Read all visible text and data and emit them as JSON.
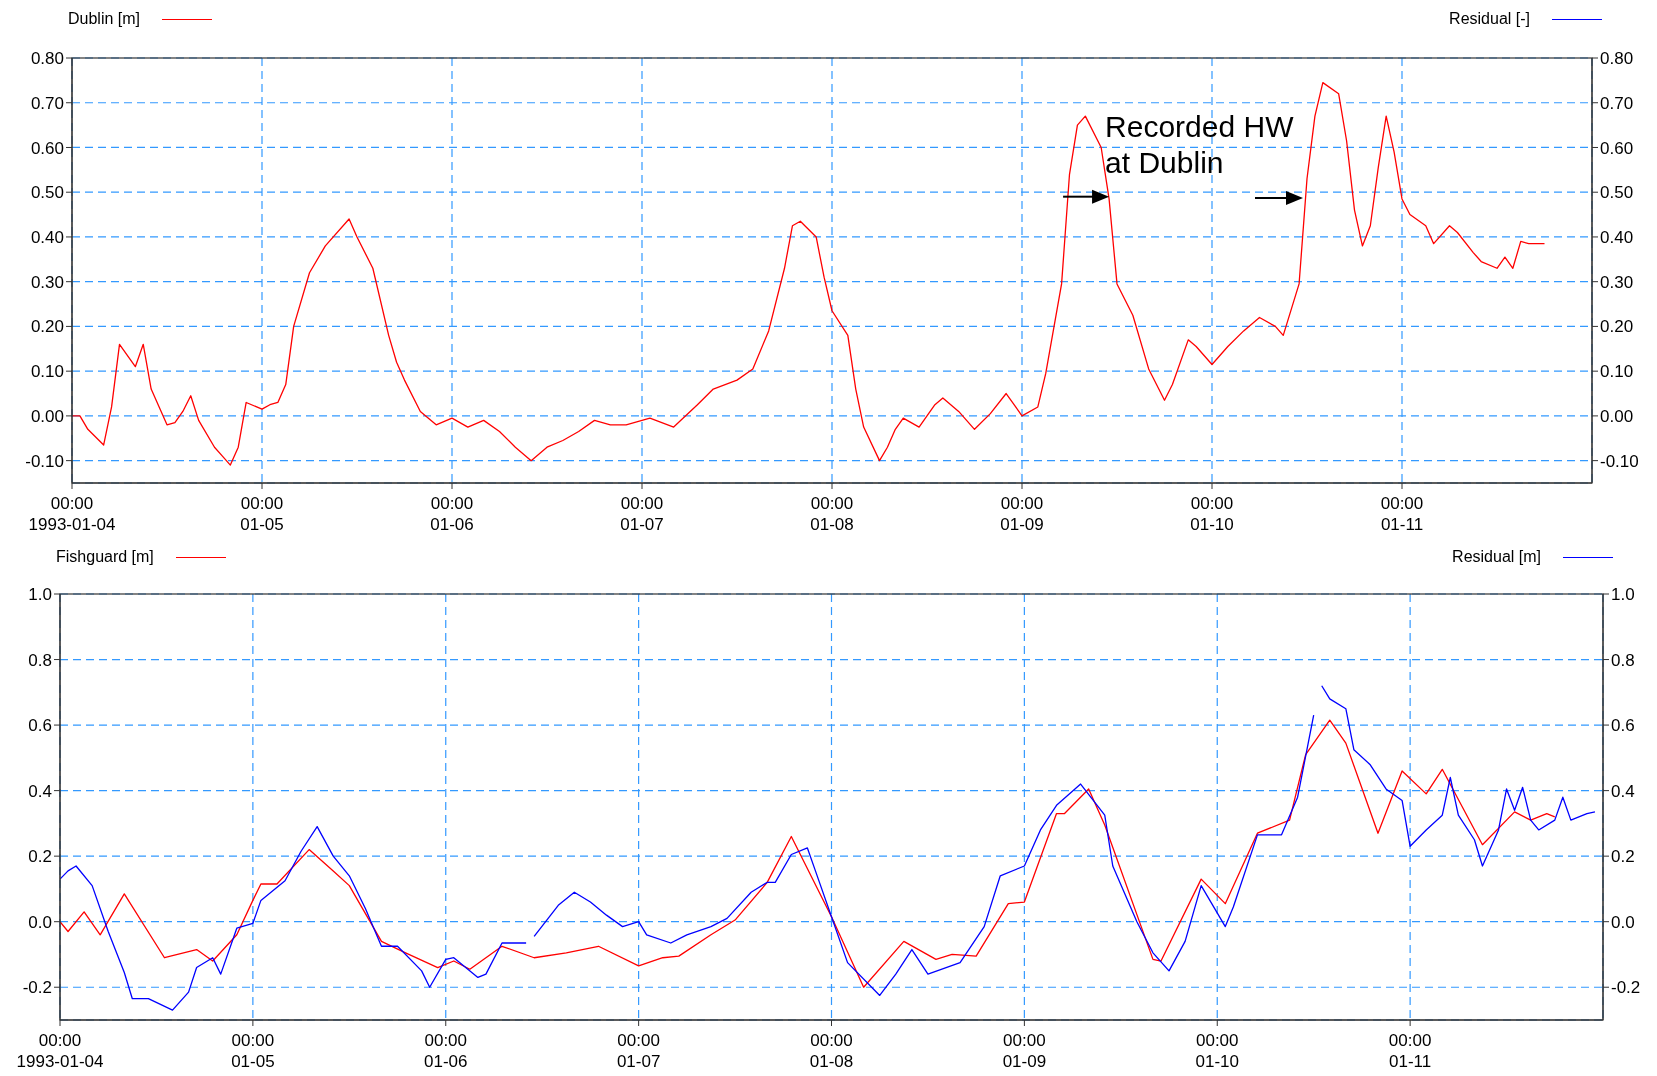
{
  "chart_data": [
    {
      "type": "line",
      "legend": "top",
      "grid": true,
      "xlim": [
        "1993-01-04T00:00",
        "1993-01-12T00:00"
      ],
      "xticks": [
        {
          "value": "1993-01-04T00:00",
          "label": "00:00\n1993-01-04"
        },
        {
          "value": "1993-01-05T00:00",
          "label": "00:00\n01-05"
        },
        {
          "value": "1993-01-06T00:00",
          "label": "00:00\n01-06"
        },
        {
          "value": "1993-01-07T00:00",
          "label": "00:00\n01-07"
        },
        {
          "value": "1993-01-08T00:00",
          "label": "00:00\n01-08"
        },
        {
          "value": "1993-01-09T00:00",
          "label": "00:00\n01-09"
        },
        {
          "value": "1993-01-10T00:00",
          "label": "00:00\n01-10"
        },
        {
          "value": "1993-01-11T00:00",
          "label": "00:00\n01-11"
        }
      ],
      "ylim": [
        -0.15,
        0.8
      ],
      "yticks": [
        {
          "value": -0.1,
          "label": "-0.10"
        },
        {
          "value": 0,
          "label": "0.00"
        },
        {
          "value": 0.1,
          "label": "0.10"
        },
        {
          "value": 0.2,
          "label": "0.20"
        },
        {
          "value": 0.3,
          "label": "0.30"
        },
        {
          "value": 0.4,
          "label": "0.40"
        },
        {
          "value": 0.5,
          "label": "0.50"
        },
        {
          "value": 0.6,
          "label": "0.60"
        },
        {
          "value": 0.7,
          "label": "0.70"
        },
        {
          "value": 0.8,
          "label": "0.80"
        }
      ],
      "y2lim": [
        -0.15,
        0.8
      ],
      "y2ticks": [
        {
          "value": -0.1,
          "label": "-0.10"
        },
        {
          "value": 0,
          "label": "0.00"
        },
        {
          "value": 0.1,
          "label": "0.10"
        },
        {
          "value": 0.2,
          "label": "0.20"
        },
        {
          "value": 0.3,
          "label": "0.30"
        },
        {
          "value": 0.4,
          "label": "0.40"
        },
        {
          "value": 0.5,
          "label": "0.50"
        },
        {
          "value": 0.6,
          "label": "0.60"
        },
        {
          "value": 0.7,
          "label": "0.70"
        },
        {
          "value": 0.8,
          "label": "0.80"
        }
      ],
      "annotations": [
        {
          "text": "Recorded HW at Dublin",
          "x": "1993-01-09T11:00",
          "y": 0.49
        }
      ],
      "series": [
        {
          "name": "Dublin [m]",
          "color": "#ff0000",
          "x": [
            "1993-01-04T00:00",
            "1993-01-04T01:00",
            "1993-01-04T02:00",
            "1993-01-04T04:00",
            "1993-01-04T05:00",
            "1993-01-04T06:00",
            "1993-01-04T08:00",
            "1993-01-04T09:00",
            "1993-01-04T10:00",
            "1993-01-04T12:00",
            "1993-01-04T13:00",
            "1993-01-04T14:00",
            "1993-01-04T15:00",
            "1993-01-04T16:00",
            "1993-01-04T18:00",
            "1993-01-04T19:00",
            "1993-01-04T20:00",
            "1993-01-04T21:00",
            "1993-01-04T22:00",
            "1993-01-05T00:00",
            "1993-01-05T01:00",
            "1993-01-05T02:00",
            "1993-01-05T03:00",
            "1993-01-05T04:00",
            "1993-01-05T06:00",
            "1993-01-05T08:00",
            "1993-01-05T11:00",
            "1993-01-05T12:00",
            "1993-01-05T14:00",
            "1993-01-05T16:00",
            "1993-01-05T17:00",
            "1993-01-05T18:00",
            "1993-01-05T20:00",
            "1993-01-05T22:00",
            "1993-01-06T00:00",
            "1993-01-06T02:00",
            "1993-01-06T04:00",
            "1993-01-06T06:00",
            "1993-01-06T08:00",
            "1993-01-06T10:00",
            "1993-01-06T12:00",
            "1993-01-06T14:00",
            "1993-01-06T16:00",
            "1993-01-06T18:00",
            "1993-01-06T20:00",
            "1993-01-06T22:00",
            "1993-01-07T01:00",
            "1993-01-07T04:00",
            "1993-01-07T07:00",
            "1993-01-07T09:00",
            "1993-01-07T12:00",
            "1993-01-07T14:00",
            "1993-01-07T16:00",
            "1993-01-07T18:00",
            "1993-01-07T19:00",
            "1993-01-07T20:00",
            "1993-01-07T22:00",
            "1993-01-07T23:00",
            "1993-01-08T00:00",
            "1993-01-08T02:00",
            "1993-01-08T03:00",
            "1993-01-08T04:00",
            "1993-01-08T06:00",
            "1993-01-08T07:00",
            "1993-01-08T08:00",
            "1993-01-08T09:00",
            "1993-01-08T11:00",
            "1993-01-08T13:00",
            "1993-01-08T14:00",
            "1993-01-08T16:00",
            "1993-01-08T18:00",
            "1993-01-08T20:00",
            "1993-01-08T22:00",
            "1993-01-08T23:00",
            "1993-01-09T00:00",
            "1993-01-09T02:00",
            "1993-01-09T03:00",
            "1993-01-09T05:00",
            "1993-01-09T06:00",
            "1993-01-09T07:00",
            "1993-01-09T08:00",
            "1993-01-09T10:00",
            "1993-01-09T11:00",
            "1993-01-09T12:00",
            "1993-01-09T14:00",
            "1993-01-09T16:00",
            "1993-01-09T18:00",
            "1993-01-09T19:00",
            "1993-01-09T21:00",
            "1993-01-09T22:00",
            "1993-01-10T00:00",
            "1993-01-10T02:00",
            "1993-01-10T04:00",
            "1993-01-10T06:00",
            "1993-01-10T08:00",
            "1993-01-10T09:00",
            "1993-01-10T11:00",
            "1993-01-10T12:00",
            "1993-01-10T13:00",
            "1993-01-10T14:00",
            "1993-01-10T16:00",
            "1993-01-10T17:00",
            "1993-01-10T18:00",
            "1993-01-10T19:00",
            "1993-01-10T20:00",
            "1993-01-10T21:00",
            "1993-01-10T22:00",
            "1993-01-10T23:00",
            "1993-01-11T00:00",
            "1993-01-11T01:00",
            "1993-01-11T03:00",
            "1993-01-11T04:00",
            "1993-01-11T06:00",
            "1993-01-11T07:00",
            "1993-01-11T09:00",
            "1993-01-11T10:00",
            "1993-01-11T12:00",
            "1993-01-11T13:00",
            "1993-01-11T14:00",
            "1993-01-11T15:00",
            "1993-01-11T16:00",
            "1993-01-11T18:00"
          ],
          "values": [
            0.0,
            0.0,
            -0.03,
            -0.065,
            0.02,
            0.16,
            0.11,
            0.16,
            0.06,
            -0.02,
            -0.015,
            0.01,
            0.045,
            -0.01,
            -0.07,
            -0.09,
            -0.11,
            -0.07,
            0.03,
            0.015,
            0.025,
            0.03,
            0.07,
            0.2,
            0.32,
            0.38,
            0.44,
            0.4,
            0.33,
            0.18,
            0.12,
            0.08,
            0.01,
            -0.02,
            -0.005,
            -0.025,
            -0.01,
            -0.035,
            -0.07,
            -0.1,
            -0.07,
            -0.055,
            -0.035,
            -0.01,
            -0.02,
            -0.02,
            -0.005,
            -0.025,
            0.025,
            0.06,
            0.08,
            0.105,
            0.19,
            0.33,
            0.425,
            0.435,
            0.4,
            0.31,
            0.235,
            0.18,
            0.06,
            -0.025,
            -0.1,
            -0.07,
            -0.03,
            -0.005,
            -0.025,
            0.025,
            0.04,
            0.01,
            -0.03,
            0.005,
            0.05,
            0.025,
            0.0,
            0.02,
            0.095,
            0.295,
            0.54,
            0.65,
            0.67,
            0.6,
            0.485,
            0.295,
            0.225,
            0.105,
            0.035,
            0.07,
            0.17,
            0.155,
            0.115,
            0.155,
            0.19,
            0.22,
            0.2,
            0.18,
            0.295,
            0.53,
            0.67,
            0.745,
            0.72,
            0.615,
            0.46,
            0.38,
            0.425,
            0.555,
            0.67,
            0.59,
            0.485,
            0.45,
            0.425,
            0.385,
            0.425,
            0.41,
            0.365,
            0.345,
            0.33,
            0.355,
            0.33,
            0.39,
            0.385,
            0.385
          ]
        },
        {
          "name": "Residual [-]",
          "color": "#0000ff",
          "axis": "y2"
        }
      ]
    },
    {
      "type": "line",
      "legend": "top",
      "grid": true,
      "xlim": [
        "1993-01-04T00:00",
        "1993-01-12T00:00"
      ],
      "xticks": [
        {
          "value": "1993-01-04T00:00",
          "label": "00:00\n1993-01-04"
        },
        {
          "value": "1993-01-05T00:00",
          "label": "00:00\n01-05"
        },
        {
          "value": "1993-01-06T00:00",
          "label": "00:00\n01-06"
        },
        {
          "value": "1993-01-07T00:00",
          "label": "00:00\n01-07"
        },
        {
          "value": "1993-01-08T00:00",
          "label": "00:00\n01-08"
        },
        {
          "value": "1993-01-09T00:00",
          "label": "00:00\n01-09"
        },
        {
          "value": "1993-01-10T00:00",
          "label": "00:00\n01-10"
        },
        {
          "value": "1993-01-11T00:00",
          "label": "00:00\n01-11"
        }
      ],
      "ylim": [
        -0.3,
        1.0
      ],
      "yticks": [
        -0.2,
        {
          "value": 0,
          "label": "0.0"
        },
        0.2,
        0.4,
        0.6,
        0.8,
        {
          "value": 1,
          "label": "1.0"
        }
      ],
      "y2lim": [
        -0.3,
        1.0
      ],
      "y2ticks": [
        -0.2,
        {
          "value": 0,
          "label": "0.0"
        },
        0.2,
        0.4,
        0.6,
        0.8,
        {
          "value": 1,
          "label": "1.0"
        }
      ],
      "series": [
        {
          "name": "Fishguard [m]",
          "color": "#ff0000",
          "x": [
            "1993-01-04T00:00",
            "1993-01-04T01:00",
            "1993-01-04T03:00",
            "1993-01-04T05:00",
            "1993-01-04T08:00",
            "1993-01-04T13:00",
            "1993-01-04T17:00",
            "1993-01-04T19:00",
            "1993-01-04T22:00",
            "1993-01-05T00:00",
            "1993-01-05T01:00",
            "1993-01-05T03:00",
            "1993-01-05T07:00",
            "1993-01-05T10:00",
            "1993-01-05T12:00",
            "1993-01-05T16:00",
            "1993-01-05T19:00",
            "1993-01-05T23:00",
            "1993-01-06T01:00",
            "1993-01-06T03:00",
            "1993-01-06T07:00",
            "1993-01-06T11:00",
            "1993-01-06T15:00",
            "1993-01-06T19:00",
            "1993-01-07T00:00",
            "1993-01-07T03:00",
            "1993-01-07T05:00",
            "1993-01-07T09:00",
            "1993-01-07T12:00",
            "1993-01-07T16:00",
            "1993-01-07T19:00",
            "1993-01-08T00:00",
            "1993-01-08T04:00",
            "1993-01-08T09:00",
            "1993-01-08T13:00",
            "1993-01-08T15:00",
            "1993-01-08T18:00",
            "1993-01-08T22:00",
            "1993-01-09T00:00",
            "1993-01-09T04:00",
            "1993-01-09T05:00",
            "1993-01-09T08:00",
            "1993-01-09T10:00",
            "1993-01-09T16:00",
            "1993-01-09T17:00",
            "1993-01-09T22:00",
            "1993-01-10T01:00",
            "1993-01-10T05:00",
            "1993-01-10T09:00",
            "1993-01-10T11:00",
            "1993-01-10T14:00",
            "1993-01-10T16:00",
            "1993-01-10T20:00",
            "1993-01-10T23:00",
            "1993-01-11T02:00",
            "1993-01-11T04:00",
            "1993-01-11T09:00",
            "1993-01-11T13:00",
            "1993-01-11T15:00",
            "1993-01-11T17:00",
            "1993-01-11T18:00"
          ],
          "values": [
            0.0,
            -0.03,
            0.03,
            -0.04,
            0.085,
            -0.11,
            -0.085,
            -0.12,
            -0.04,
            0.065,
            0.115,
            0.115,
            0.22,
            0.155,
            0.11,
            -0.06,
            -0.095,
            -0.14,
            -0.12,
            -0.145,
            -0.075,
            -0.11,
            -0.095,
            -0.075,
            -0.135,
            -0.11,
            -0.105,
            -0.04,
            0.005,
            0.12,
            0.26,
            0.015,
            -0.2,
            -0.06,
            -0.115,
            -0.1,
            -0.105,
            0.055,
            0.06,
            0.33,
            0.33,
            0.405,
            0.295,
            -0.115,
            -0.12,
            0.13,
            0.055,
            0.27,
            0.31,
            0.51,
            0.615,
            0.545,
            0.27,
            0.46,
            0.39,
            0.465,
            0.235,
            0.335,
            0.31,
            0.33,
            0.32
          ]
        },
        {
          "name": "Residual [m]",
          "color": "#0000ff",
          "axis": "y2",
          "x": [
            "1993-01-04T00:00",
            "1993-01-04T01:00",
            "1993-01-04T02:00",
            "1993-01-04T04:00",
            "1993-01-04T06:00",
            "1993-01-04T08:00",
            "1993-01-04T09:00",
            "1993-01-04T11:00",
            "1993-01-04T14:00",
            "1993-01-04T16:00",
            "1993-01-04T17:00",
            "1993-01-04T19:00",
            "1993-01-04T20:00",
            "1993-01-04T22:00",
            "1993-01-05T00:00",
            "1993-01-05T01:00",
            "1993-01-05T04:00",
            "1993-01-05T06:00",
            "1993-01-05T08:00",
            "1993-01-05T10:00",
            "1993-01-05T12:00",
            "1993-01-05T14:00",
            "1993-01-05T16:00",
            "1993-01-05T18:00",
            "1993-01-05T21:00",
            "1993-01-05T22:00",
            "1993-01-06T00:00",
            "1993-01-06T01:00",
            "1993-01-06T04:00",
            "1993-01-06T05:00",
            "1993-01-06T07:00",
            "1993-01-06T10:00",
            "1993-01-06T10:30",
            "1993-01-06T11:00",
            "1993-01-06T14:00",
            "1993-01-06T16:00",
            "1993-01-06T18:00",
            "1993-01-06T20:00",
            "1993-01-06T22:00",
            "1993-01-07T00:00",
            "1993-01-07T01:00",
            "1993-01-07T04:00",
            "1993-01-07T06:00",
            "1993-01-07T09:00",
            "1993-01-07T11:00",
            "1993-01-07T14:00",
            "1993-01-07T16:00",
            "1993-01-07T17:00",
            "1993-01-07T19:00",
            "1993-01-07T21:00",
            "1993-01-07T22:00",
            "1993-01-08T00:00",
            "1993-01-08T02:00",
            "1993-01-08T06:00",
            "1993-01-08T08:00",
            "1993-01-08T10:00",
            "1993-01-08T12:00",
            "1993-01-08T16:00",
            "1993-01-08T19:00",
            "1993-01-08T21:00",
            "1993-01-09T00:00",
            "1993-01-09T02:00",
            "1993-01-09T04:00",
            "1993-01-09T07:00",
            "1993-01-09T10:00",
            "1993-01-09T11:00",
            "1993-01-09T14:00",
            "1993-01-09T16:00",
            "1993-01-09T18:00",
            "1993-01-09T20:00",
            "1993-01-09T22:00",
            "1993-01-10T01:00",
            "1993-01-10T02:00",
            "1993-01-10T05:00",
            "1993-01-10T08:00",
            "1993-01-10T10:00",
            "1993-01-10T12:00",
            "1993-01-10T12:30",
            "1993-01-10T13:00",
            "1993-01-10T14:00",
            "1993-01-10T16:00",
            "1993-01-10T17:00",
            "1993-01-10T19:00",
            "1993-01-10T21:00",
            "1993-01-10T23:00",
            "1993-01-11T00:00",
            "1993-01-11T02:00",
            "1993-01-11T04:00",
            "1993-01-11T05:00",
            "1993-01-11T06:00",
            "1993-01-11T08:00",
            "1993-01-11T09:00",
            "1993-01-11T11:00",
            "1993-01-11T12:00",
            "1993-01-11T13:00",
            "1993-01-11T14:00",
            "1993-01-11T15:00",
            "1993-01-11T16:00",
            "1993-01-11T18:00",
            "1993-01-11T19:00",
            "1993-01-11T20:00",
            "1993-01-11T22:00",
            "1993-01-11T23:00"
          ],
          "values": [
            0.13,
            0.155,
            0.17,
            0.11,
            -0.03,
            -0.155,
            -0.235,
            -0.235,
            -0.27,
            -0.215,
            -0.14,
            -0.11,
            -0.16,
            -0.02,
            -0.005,
            0.065,
            0.125,
            0.215,
            0.29,
            0.2,
            0.14,
            0.04,
            -0.075,
            -0.075,
            -0.15,
            -0.2,
            -0.115,
            -0.11,
            -0.17,
            -0.16,
            -0.065,
            -0.065,
            null,
            -0.045,
            0.05,
            0.09,
            0.06,
            0.02,
            -0.015,
            0.0,
            -0.04,
            -0.065,
            -0.04,
            -0.015,
            0.01,
            0.09,
            0.12,
            0.12,
            0.205,
            0.225,
            0.155,
            0.015,
            -0.125,
            -0.225,
            -0.16,
            -0.085,
            -0.16,
            -0.125,
            -0.015,
            0.14,
            0.17,
            0.28,
            0.355,
            0.42,
            0.325,
            0.17,
            0.0,
            -0.095,
            -0.15,
            -0.06,
            0.11,
            -0.015,
            0.045,
            0.265,
            0.265,
            0.38,
            0.63,
            null,
            0.72,
            0.68,
            0.65,
            0.525,
            0.48,
            0.405,
            0.37,
            0.23,
            0.28,
            0.325,
            0.44,
            0.325,
            0.25,
            0.17,
            0.28,
            0.405,
            0.34,
            0.41,
            0.31,
            0.28,
            0.31,
            0.38,
            0.31,
            0.33,
            0.335
          ]
        }
      ]
    }
  ]
}
